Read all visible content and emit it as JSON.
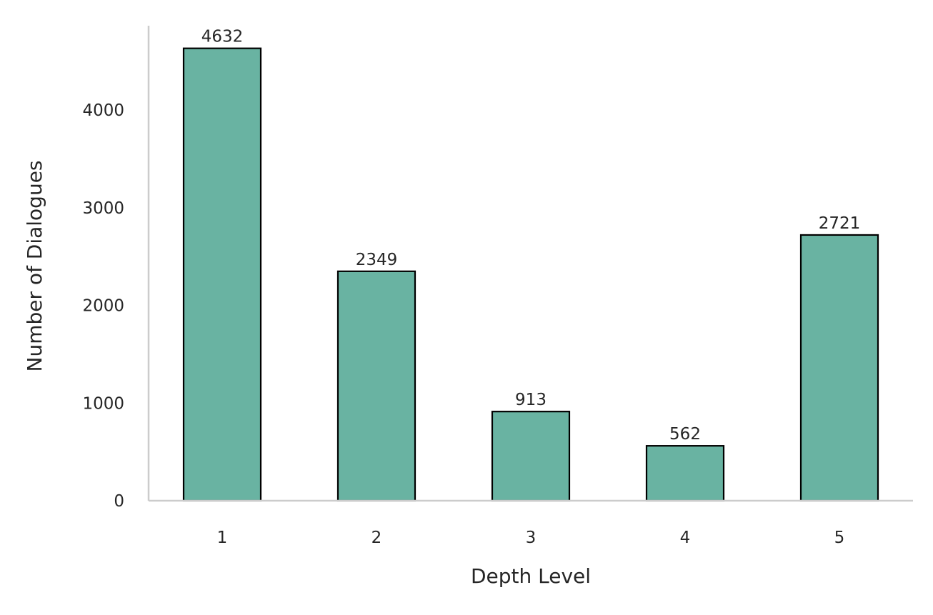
{
  "chart_data": {
    "type": "bar",
    "title": "",
    "xlabel": "Depth Level",
    "ylabel": "Number of Dialogues",
    "categories": [
      "1",
      "2",
      "3",
      "4",
      "5"
    ],
    "values": [
      4632,
      2349,
      913,
      562,
      2721
    ],
    "data_labels": [
      "4632",
      "2349",
      "913",
      "562",
      "2721"
    ],
    "yticks": [
      0,
      1000,
      2000,
      3000,
      4000
    ],
    "ytick_labels": [
      "0",
      "1000",
      "2000",
      "3000",
      "4000"
    ],
    "ylim": [
      0,
      4863.6
    ],
    "grid": false,
    "legend": "none",
    "colors": {
      "bar_fill": "#69b3a2",
      "bar_edge": "#000000",
      "axis_spine": "#cccccc",
      "text": "#262626"
    }
  }
}
